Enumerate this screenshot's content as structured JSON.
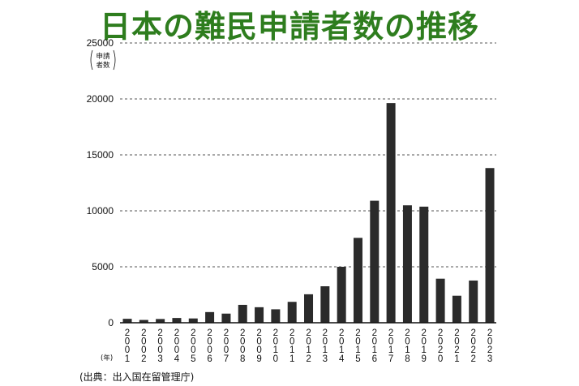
{
  "chart_data": {
    "type": "bar",
    "title": "日本の難民申請者数の推移",
    "title_color": "#2e7d1e",
    "bar_color": "#2b2b2b",
    "ylabel_lines": [
      "申請",
      "者数"
    ],
    "xlabel": "年",
    "ylim": [
      0,
      25000
    ],
    "yticks": [
      0,
      5000,
      10000,
      15000,
      20000,
      25000
    ],
    "grid": "horizontal-dashed",
    "categories": [
      "2001",
      "2002",
      "2003",
      "2004",
      "2005",
      "2006",
      "2007",
      "2008",
      "2009",
      "2010",
      "2011",
      "2012",
      "2013",
      "2014",
      "2015",
      "2016",
      "2017",
      "2018",
      "2019",
      "2020",
      "2021",
      "2022",
      "2023"
    ],
    "values": [
      353,
      250,
      336,
      426,
      384,
      954,
      816,
      1599,
      1388,
      1202,
      1867,
      2545,
      3260,
      5000,
      7586,
      10901,
      19629,
      10493,
      10375,
      3936,
      2413,
      3772,
      13823
    ],
    "source": "(出典：出入国在留管理庁)"
  }
}
